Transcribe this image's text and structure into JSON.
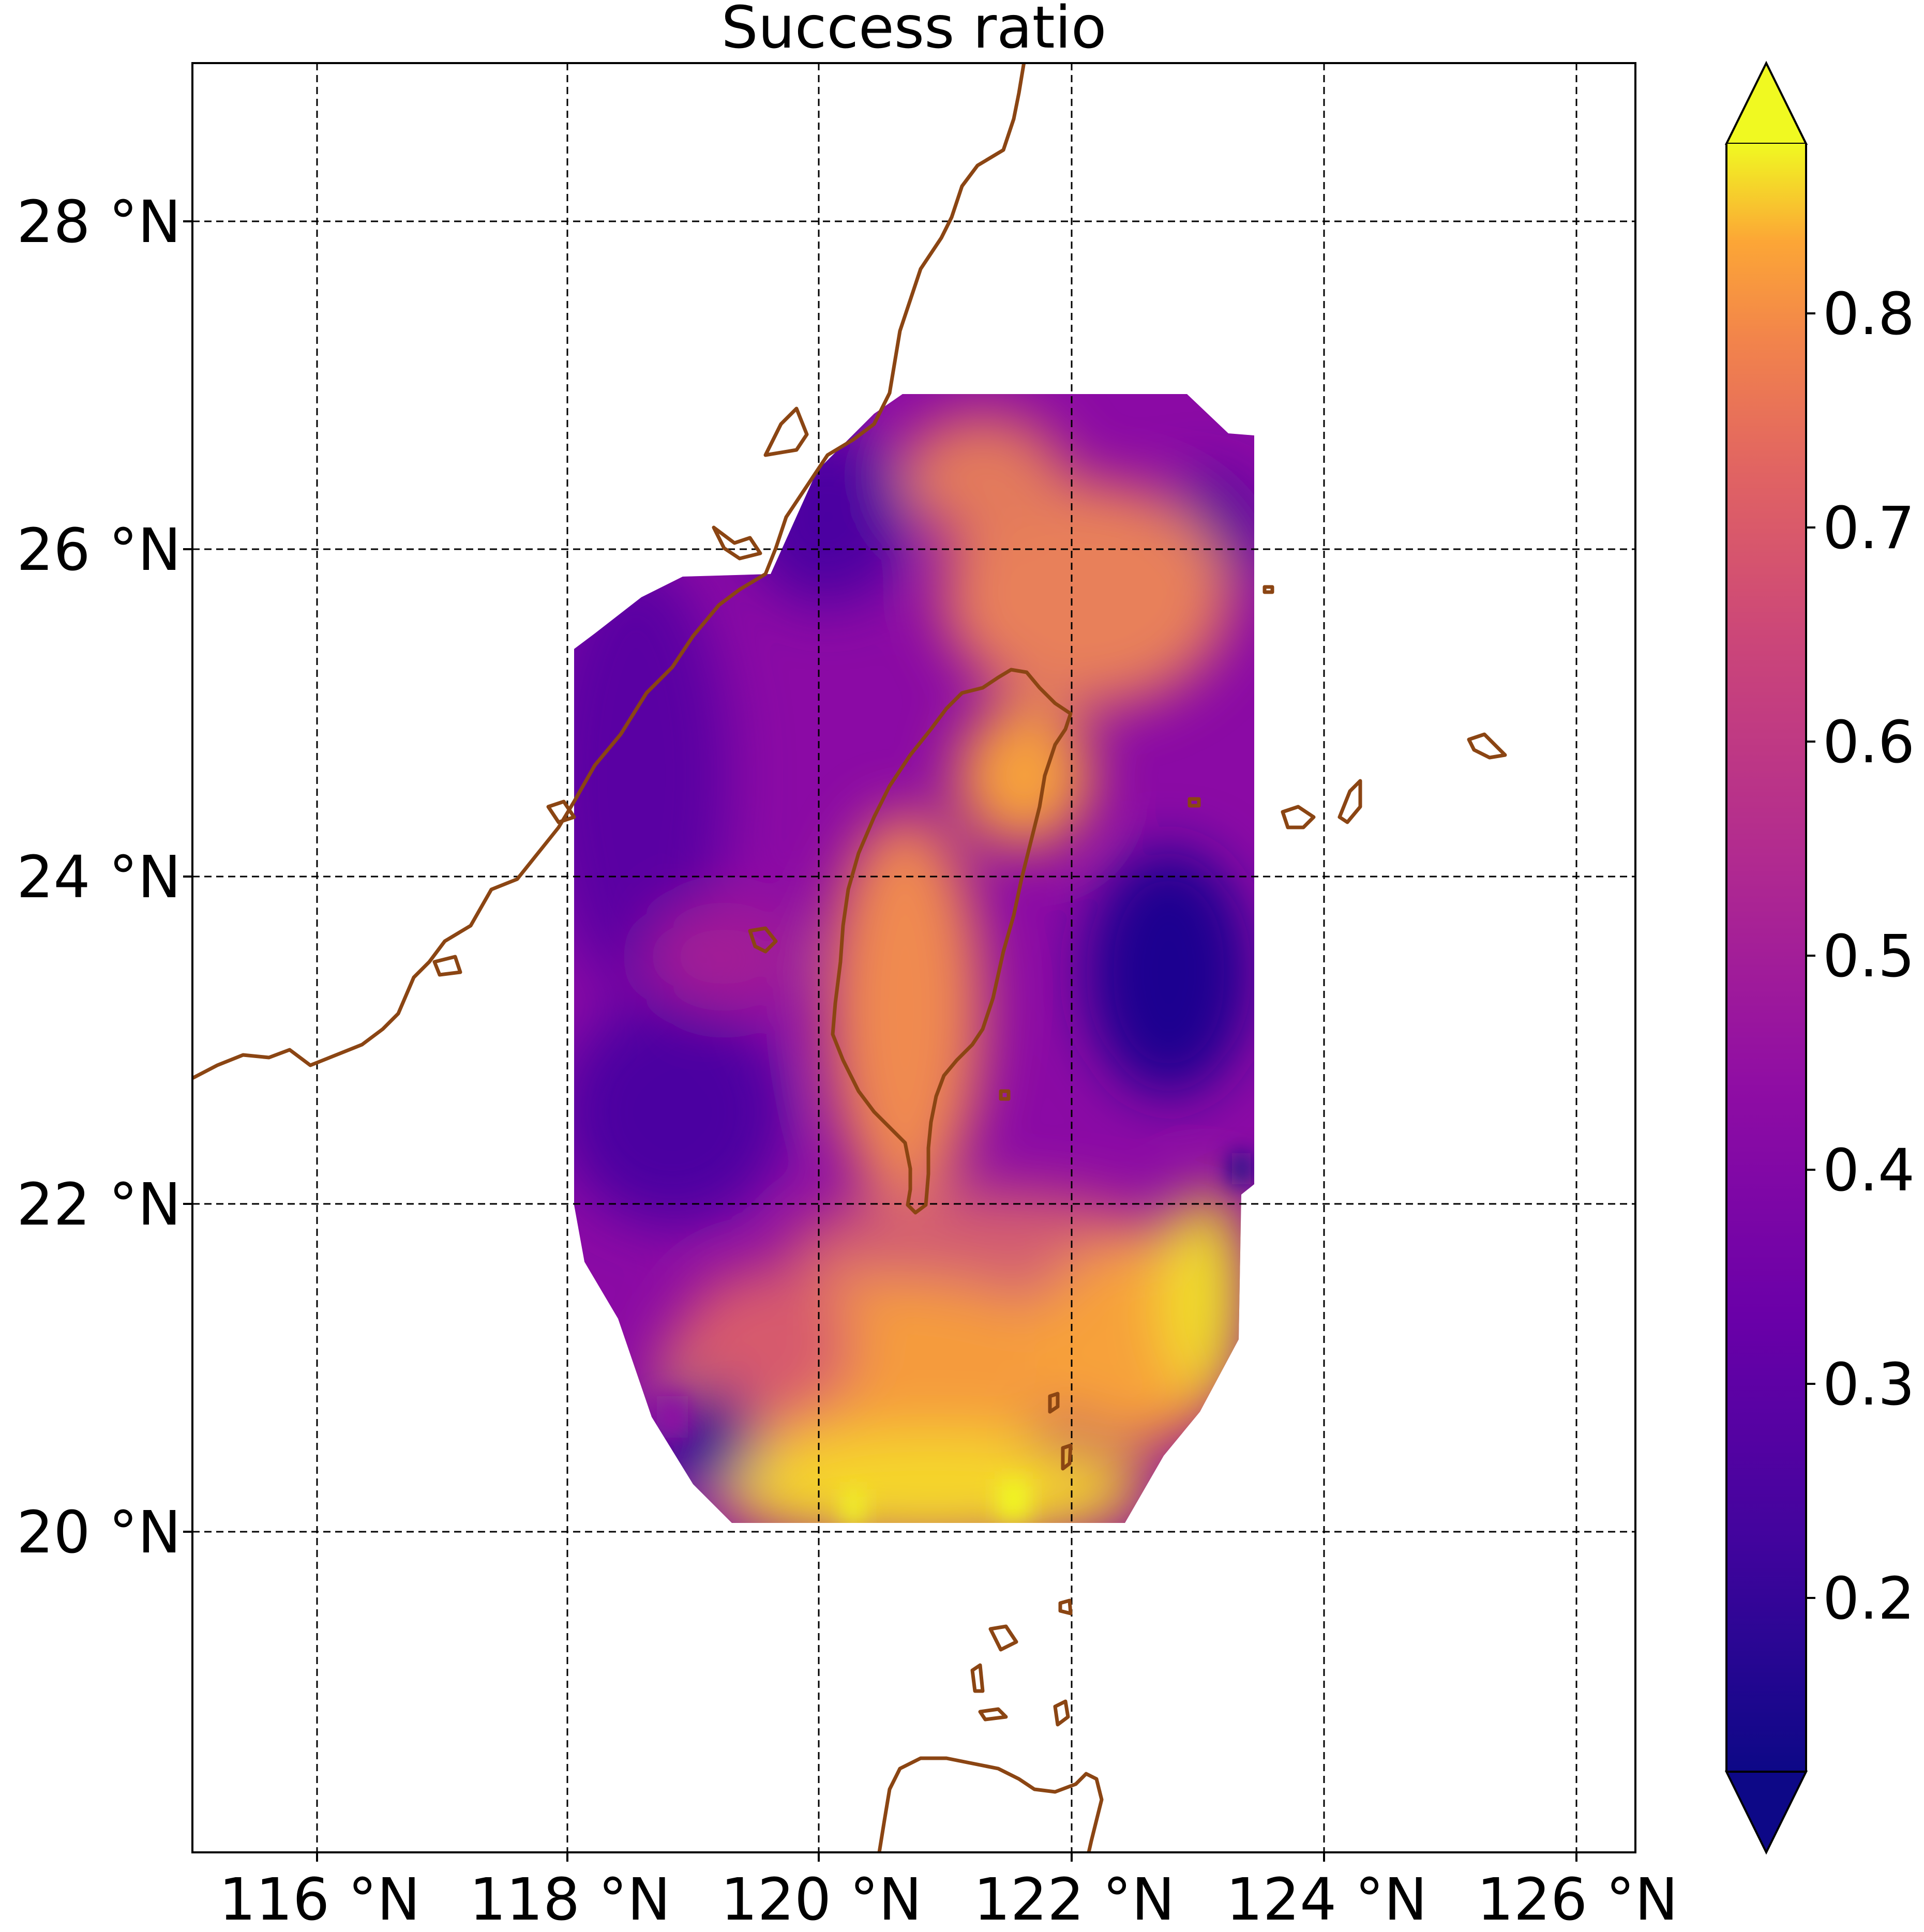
{
  "chart_data": {
    "type": "heatmap",
    "title": "Success ratio",
    "x_ticks": [
      "116 °N",
      "118 °N",
      "120 °N",
      "122 °N",
      "124 °N",
      "126 °N"
    ],
    "y_ticks": [
      "28 °N",
      "26 °N",
      "24 °N",
      "22 °N",
      "20 °N"
    ],
    "lon_range": [
      115,
      126.5
    ],
    "lat_range": [
      17.8,
      29
    ],
    "grid": true,
    "colorbar": {
      "colormap": "plasma",
      "range": [
        0.12,
        0.88
      ],
      "ticks": [
        "0.2",
        "0.3",
        "0.4",
        "0.5",
        "0.6",
        "0.7",
        "0.8"
      ],
      "extend": "both"
    },
    "colors": {
      "coastline": "#8B4513",
      "grid": "#000000"
    }
  }
}
